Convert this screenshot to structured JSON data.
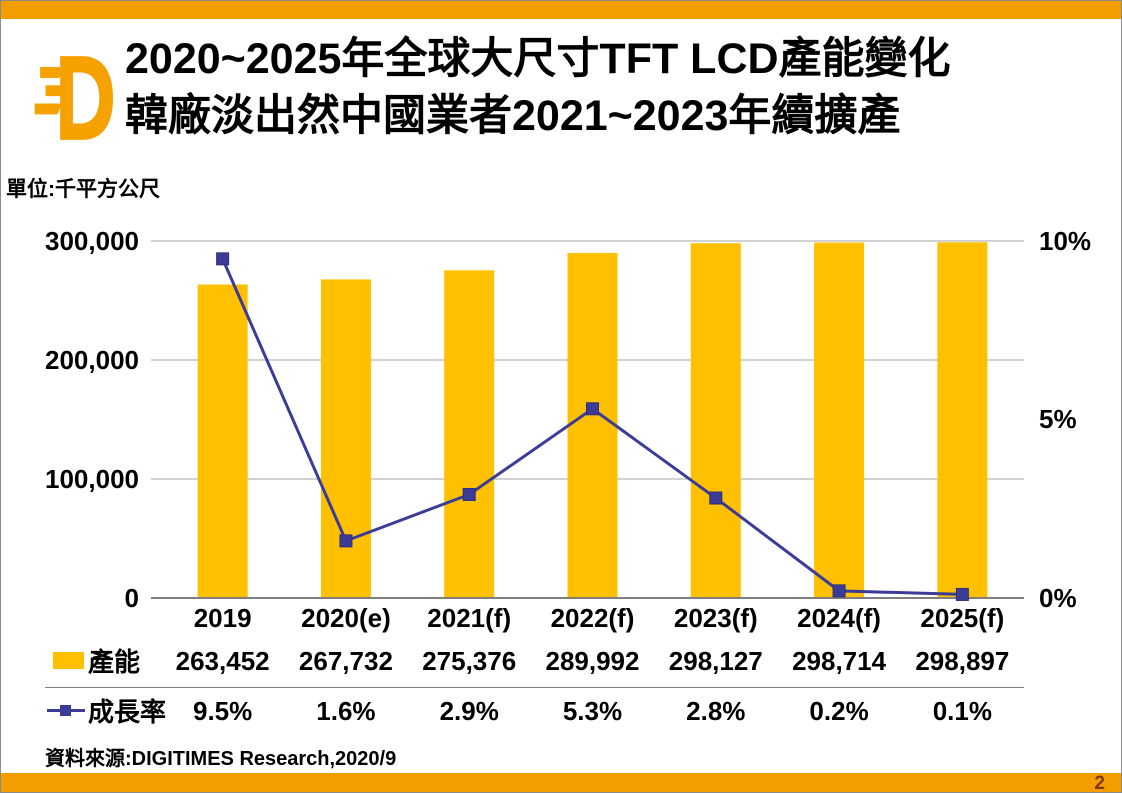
{
  "header": {
    "title_line1": "2020~2025年全球大尺寸TFT LCD產能變化",
    "title_line2": "韓廠淡出然中國業者2021~2023年續擴產",
    "logo": "digitimes-d-logo"
  },
  "footer": {
    "source": "資料來源:DIGITIMES Research,2020/9",
    "page_number": "2"
  },
  "colors": {
    "accent_orange": "#F49D00",
    "logo_orange": "#F5A201",
    "bar_yellow": "#FFC000",
    "line_navy": "#3B3B98",
    "gridline_gray": "#A6A6A6",
    "axis_gray": "#7F7F7F",
    "page_number_brown": "#7E3A00"
  },
  "chart_data": {
    "type": "combo-bar-line",
    "title": "2020~2025年全球大尺寸TFT LCD產能變化 韓廠淡出然中國業者2021~2023年續擴產",
    "unit_label": "單位:千平方公尺",
    "categories": [
      "2019",
      "2020(e)",
      "2021(f)",
      "2022(f)",
      "2023(f)",
      "2024(f)",
      "2025(f)"
    ],
    "series": [
      {
        "name": "產能",
        "type": "bar",
        "axis": "left",
        "color": "#FFC000",
        "values": [
          263452,
          267732,
          275376,
          289992,
          298127,
          298714,
          298897
        ],
        "display": [
          "263,452",
          "267,732",
          "275,376",
          "289,992",
          "298,127",
          "298,714",
          "298,897"
        ]
      },
      {
        "name": "成長率",
        "type": "line",
        "axis": "right",
        "color": "#3B3B98",
        "values": [
          9.5,
          1.6,
          2.9,
          5.3,
          2.8,
          0.2,
          0.1
        ],
        "display": [
          "9.5%",
          "1.6%",
          "2.9%",
          "5.3%",
          "2.8%",
          "0.2%",
          "0.1%"
        ]
      }
    ],
    "left_axis": {
      "min": 0,
      "max": 300000,
      "tick_values": [
        300000,
        200000,
        100000,
        0
      ],
      "ticks": [
        "300,000",
        "200,000",
        "100,000",
        "0"
      ]
    },
    "right_axis": {
      "min": 0,
      "max": 10,
      "tick_values": [
        10,
        5,
        0
      ],
      "ticks": [
        "10%",
        "5%",
        "0%"
      ]
    },
    "grid": true,
    "legend_position": "bottom-left-table"
  }
}
